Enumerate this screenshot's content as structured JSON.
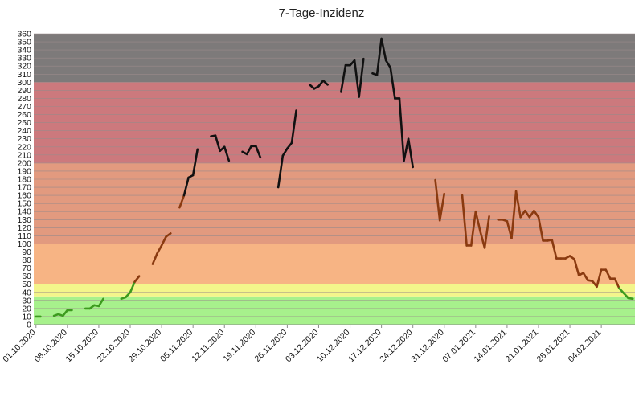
{
  "chart_data": {
    "type": "line",
    "title": "7-Tage-Inzidenz",
    "xlabel": "",
    "ylabel": "",
    "ylim": [
      0,
      360
    ],
    "ytick_step": 10,
    "grid": true,
    "legend": "none",
    "x_tick_labels": [
      "01.10.2020",
      "08.10.2020",
      "15.10.2020",
      "22.10.2020",
      "29.10.2020",
      "05.11.2020",
      "12.11.2020",
      "19.11.2020",
      "26.11.2020",
      "03.12.2020",
      "10.12.2020",
      "17.12.2020",
      "24.12.2020",
      "31.12.2020",
      "07.01.2021",
      "14.01.2021",
      "21.01.2021",
      "28.01.2021",
      "04.02.2021"
    ],
    "x_range": [
      "2020-10-01",
      "2021-02-11"
    ],
    "bands": [
      {
        "from": 0,
        "to": 35,
        "color": "#a7f18c"
      },
      {
        "from": 35,
        "to": 50,
        "color": "#f3f58b"
      },
      {
        "from": 50,
        "to": 100,
        "color": "#f7b484"
      },
      {
        "from": 100,
        "to": 200,
        "color": "#e29a7f"
      },
      {
        "from": 200,
        "to": 300,
        "color": "#cc797d"
      },
      {
        "from": 300,
        "to": 360,
        "color": "#7d7a7a"
      }
    ],
    "gridline_color": "#9a8a8a",
    "line_colors": {
      "low": "#3d9b1e",
      "mid": "#8a3a10",
      "high": "#111111"
    },
    "segments": [
      [
        [
          "2020-10-01",
          10
        ],
        [
          "2020-10-02",
          10
        ]
      ],
      [
        [
          "2020-10-05",
          11
        ],
        [
          "2020-10-06",
          13
        ],
        [
          "2020-10-07",
          11
        ],
        [
          "2020-10-08",
          18
        ],
        [
          "2020-10-09",
          18
        ]
      ],
      [
        [
          "2020-10-12",
          20
        ],
        [
          "2020-10-13",
          20
        ],
        [
          "2020-10-14",
          24
        ],
        [
          "2020-10-15",
          23
        ],
        [
          "2020-10-16",
          32
        ]
      ],
      [
        [
          "2020-10-20",
          32
        ],
        [
          "2020-10-21",
          34
        ],
        [
          "2020-10-22",
          40
        ],
        [
          "2020-10-23",
          53
        ],
        [
          "2020-10-24",
          60
        ]
      ],
      [
        [
          "2020-10-27",
          75
        ],
        [
          "2020-10-28",
          88
        ],
        [
          "2020-10-29",
          98
        ],
        [
          "2020-10-30",
          109
        ],
        [
          "2020-10-31",
          113
        ]
      ],
      [
        [
          "2020-11-02",
          145
        ],
        [
          "2020-11-03",
          160
        ],
        [
          "2020-11-04",
          182
        ],
        [
          "2020-11-05",
          185
        ],
        [
          "2020-11-06",
          217
        ]
      ],
      [
        [
          "2020-11-09",
          233
        ],
        [
          "2020-11-10",
          234
        ],
        [
          "2020-11-11",
          215
        ],
        [
          "2020-11-12",
          220
        ],
        [
          "2020-11-13",
          203
        ]
      ],
      [
        [
          "2020-11-16",
          214
        ],
        [
          "2020-11-17",
          211
        ],
        [
          "2020-11-18",
          221
        ],
        [
          "2020-11-19",
          221
        ],
        [
          "2020-11-20",
          207
        ]
      ],
      [
        [
          "2020-11-24",
          170
        ],
        [
          "2020-11-25",
          209
        ],
        [
          "2020-11-26",
          218
        ],
        [
          "2020-11-27",
          225
        ],
        [
          "2020-11-28",
          265
        ]
      ],
      [
        [
          "2020-12-01",
          297
        ],
        [
          "2020-12-02",
          292
        ],
        [
          "2020-12-03",
          295
        ],
        [
          "2020-12-04",
          302
        ],
        [
          "2020-12-05",
          297
        ]
      ],
      [
        [
          "2020-12-08",
          288
        ],
        [
          "2020-12-09",
          321
        ],
        [
          "2020-12-10",
          321
        ],
        [
          "2020-12-11",
          327
        ],
        [
          "2020-12-12",
          282
        ],
        [
          "2020-12-13",
          329
        ]
      ],
      [
        [
          "2020-12-15",
          311
        ],
        [
          "2020-12-16",
          309
        ],
        [
          "2020-12-17",
          354
        ],
        [
          "2020-12-18",
          327
        ],
        [
          "2020-12-19",
          318
        ],
        [
          "2020-12-20",
          280
        ],
        [
          "2020-12-21",
          280
        ],
        [
          "2020-12-22",
          203
        ],
        [
          "2020-12-23",
          230
        ],
        [
          "2020-12-24",
          195
        ]
      ],
      [
        [
          "2020-12-29",
          179
        ],
        [
          "2020-12-30",
          129
        ],
        [
          "2020-12-31",
          162
        ]
      ],
      [
        [
          "2021-01-04",
          160
        ],
        [
          "2021-01-05",
          98
        ],
        [
          "2021-01-06",
          98
        ],
        [
          "2021-01-07",
          140
        ],
        [
          "2021-01-08",
          116
        ],
        [
          "2021-01-09",
          95
        ],
        [
          "2021-01-10",
          134
        ]
      ],
      [
        [
          "2021-01-12",
          130
        ],
        [
          "2021-01-13",
          130
        ],
        [
          "2021-01-14",
          128
        ],
        [
          "2021-01-15",
          107
        ],
        [
          "2021-01-16",
          165
        ],
        [
          "2021-01-17",
          133
        ],
        [
          "2021-01-18",
          141
        ],
        [
          "2021-01-19",
          133
        ],
        [
          "2021-01-20",
          141
        ],
        [
          "2021-01-21",
          133
        ],
        [
          "2021-01-22",
          104
        ],
        [
          "2021-01-23",
          104
        ],
        [
          "2021-01-24",
          105
        ],
        [
          "2021-01-25",
          82
        ],
        [
          "2021-01-26",
          82
        ],
        [
          "2021-01-27",
          82
        ],
        [
          "2021-01-28",
          85
        ],
        [
          "2021-01-29",
          81
        ],
        [
          "2021-01-30",
          61
        ],
        [
          "2021-01-31",
          64
        ],
        [
          "2021-02-01",
          55
        ],
        [
          "2021-02-02",
          54
        ],
        [
          "2021-02-03",
          47
        ],
        [
          "2021-02-04",
          68
        ],
        [
          "2021-02-05",
          68
        ],
        [
          "2021-02-06",
          57
        ],
        [
          "2021-02-07",
          57
        ],
        [
          "2021-02-08",
          45
        ],
        [
          "2021-02-09",
          39
        ],
        [
          "2021-02-10",
          33
        ],
        [
          "2021-02-11",
          32
        ]
      ]
    ]
  }
}
